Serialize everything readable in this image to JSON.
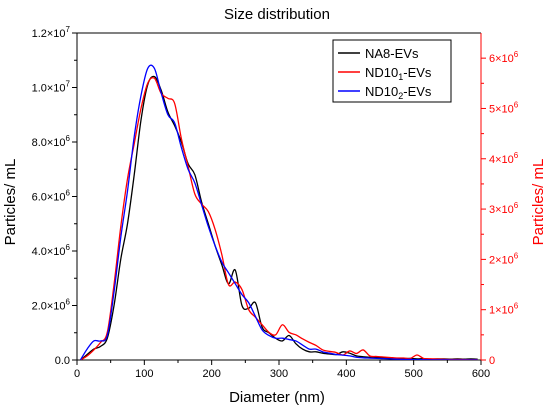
{
  "chart_data": {
    "type": "line",
    "title": "Size distribution",
    "xlabel": "Diameter (nm)",
    "ylabel_left": "Particles/ mL",
    "ylabel_right": "Particles/ mL",
    "xlim": [
      0,
      600
    ],
    "ylim_left": [
      0,
      12000000
    ],
    "ylim_right": [
      0,
      6500000
    ],
    "x_ticks": [
      0,
      100,
      200,
      300,
      400,
      500,
      600
    ],
    "x_tick_labels": [
      "0",
      "100",
      "200",
      "300",
      "400",
      "500",
      "600"
    ],
    "y_left_ticks": [
      0,
      2000000,
      4000000,
      6000000,
      8000000,
      10000000,
      12000000
    ],
    "y_left_tick_labels": [
      {
        "mant": "0.0",
        "exp": ""
      },
      {
        "mant": "2.0×10",
        "exp": "6"
      },
      {
        "mant": "4.0×10",
        "exp": "6"
      },
      {
        "mant": "6.0×10",
        "exp": "6"
      },
      {
        "mant": "8.0×10",
        "exp": "6"
      },
      {
        "mant": "1.0×10",
        "exp": "7"
      },
      {
        "mant": "1.2×10",
        "exp": "7"
      }
    ],
    "y_right_ticks": [
      0,
      1000000,
      2000000,
      3000000,
      4000000,
      5000000,
      6000000
    ],
    "y_right_tick_labels": [
      {
        "mant": "0",
        "exp": ""
      },
      {
        "mant": "1×10",
        "exp": "6"
      },
      {
        "mant": "2×10",
        "exp": "6"
      },
      {
        "mant": "3×10",
        "exp": "6"
      },
      {
        "mant": "4×10",
        "exp": "6"
      },
      {
        "mant": "5×10",
        "exp": "6"
      },
      {
        "mant": "6×10",
        "exp": "6"
      }
    ],
    "grid": false,
    "legend_position": "top-right",
    "right_axis_color": "#ff0000",
    "series": [
      {
        "name": "NA8-EVs",
        "label_main": "NA8-EVs",
        "label_sub": "",
        "label_tail": "",
        "color": "#000000",
        "axis": "left",
        "x": [
          5,
          15,
          25,
          35,
          45,
          55,
          65,
          75,
          85,
          95,
          105,
          115,
          125,
          135,
          145,
          155,
          165,
          175,
          185,
          195,
          205,
          215,
          225,
          235,
          245,
          255,
          265,
          275,
          285,
          295,
          305,
          315,
          325,
          335,
          345,
          355,
          365,
          375,
          385,
          395,
          405,
          415,
          425,
          435,
          445,
          455,
          465,
          475,
          485,
          495,
          505,
          515,
          525,
          535,
          545,
          555,
          565,
          575,
          585,
          595
        ],
        "y": [
          0,
          200000,
          400000,
          500000,
          800000,
          2000000,
          3700000,
          5000000,
          6800000,
          8800000,
          10100000,
          10400000,
          9900000,
          9100000,
          8600000,
          8000000,
          7200000,
          6800000,
          5800000,
          5000000,
          4200000,
          3500000,
          2800000,
          3300000,
          2000000,
          1900000,
          2100000,
          1200000,
          1000000,
          800000,
          700000,
          900000,
          600000,
          400000,
          300000,
          300000,
          250000,
          220000,
          200000,
          300000,
          250000,
          150000,
          120000,
          100000,
          90000,
          80000,
          70000,
          60000,
          50000,
          60000,
          40000,
          50000,
          30000,
          40000,
          40000,
          30000,
          40000,
          30000,
          40000,
          30000
        ]
      },
      {
        "name": "ND10₁-EVs",
        "label_main": "ND10",
        "label_sub": "1",
        "label_tail": "-EVs",
        "color": "#ff0000",
        "axis": "right",
        "x": [
          5,
          15,
          25,
          35,
          45,
          55,
          65,
          75,
          85,
          95,
          105,
          115,
          125,
          135,
          145,
          155,
          165,
          175,
          185,
          195,
          205,
          215,
          225,
          235,
          245,
          255,
          265,
          275,
          285,
          295,
          305,
          315,
          325,
          335,
          345,
          355,
          365,
          375,
          385,
          395,
          405,
          415,
          425,
          435,
          445,
          455,
          465,
          475,
          485,
          495,
          505,
          515,
          525,
          535,
          545,
          555,
          565,
          575,
          585,
          595
        ],
        "y": [
          0,
          80000,
          200000,
          350000,
          550000,
          1500000,
          2650000,
          3600000,
          4300000,
          5000000,
          5500000,
          5600000,
          5300000,
          5200000,
          5100000,
          4400000,
          3850000,
          3300000,
          3100000,
          2950000,
          2600000,
          2100000,
          1500000,
          1550000,
          1400000,
          1000000,
          850000,
          700000,
          550000,
          500000,
          700000,
          550000,
          500000,
          420000,
          350000,
          290000,
          200000,
          170000,
          150000,
          100000,
          180000,
          130000,
          200000,
          80000,
          70000,
          60000,
          50000,
          40000,
          40000,
          30000,
          100000,
          30000,
          25000,
          20000,
          15000,
          10000,
          10000,
          8000,
          5000,
          5000
        ]
      },
      {
        "name": "ND10₂-EVs",
        "label_main": "ND10",
        "label_sub": "2",
        "label_tail": "-EVs",
        "color": "#0000ff",
        "axis": "left",
        "x": [
          5,
          15,
          25,
          35,
          45,
          55,
          65,
          75,
          85,
          95,
          105,
          115,
          125,
          135,
          145,
          155,
          165,
          175,
          185,
          195,
          205,
          215,
          225,
          235,
          245,
          255,
          265,
          275,
          285,
          295,
          305,
          315,
          325,
          335,
          345,
          355,
          365,
          375,
          385,
          395,
          405,
          415,
          425,
          435,
          445,
          455,
          465,
          475,
          485,
          495,
          505,
          515,
          525,
          535,
          545,
          555,
          565,
          575,
          585,
          595
        ],
        "y": [
          0,
          400000,
          700000,
          700000,
          900000,
          2500000,
          4500000,
          6200000,
          8200000,
          9700000,
          10700000,
          10700000,
          9800000,
          9000000,
          8700000,
          7800000,
          7000000,
          6500000,
          5700000,
          4900000,
          4200000,
          3600000,
          3200000,
          2800000,
          2400000,
          2100000,
          1600000,
          1100000,
          900000,
          800000,
          800000,
          750000,
          700000,
          550000,
          400000,
          400000,
          300000,
          250000,
          200000,
          180000,
          150000,
          100000,
          80000,
          70000,
          60000,
          50000,
          40000,
          30000,
          20000,
          20000,
          10000,
          10000,
          5000,
          5000,
          5000,
          0,
          0,
          0,
          0,
          0
        ]
      }
    ]
  }
}
